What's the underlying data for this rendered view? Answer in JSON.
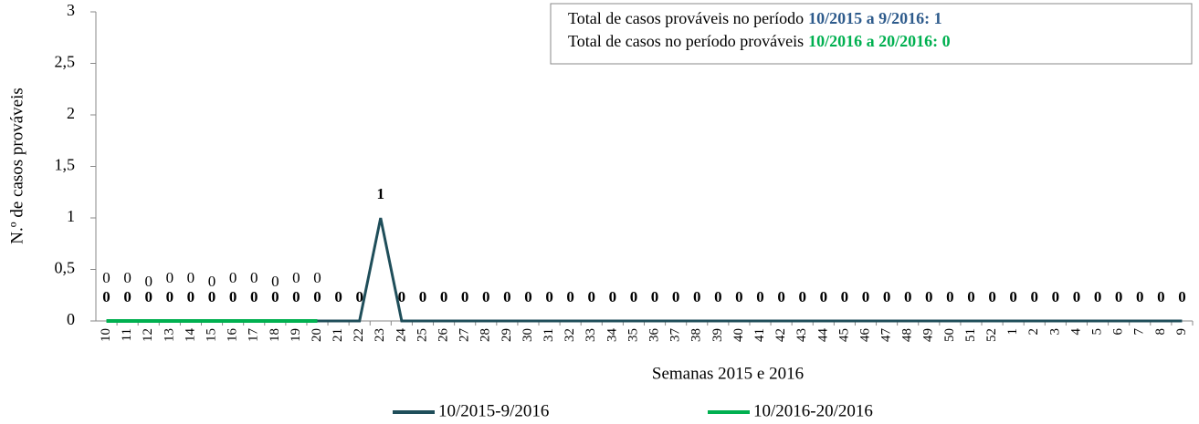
{
  "chart_data": {
    "type": "line",
    "y_label": "N.º de casos prováveis",
    "x_label": "Semanas 2015 e 2016",
    "categories": [
      "10",
      "11",
      "12",
      "13",
      "14",
      "15",
      "16",
      "17",
      "18",
      "19",
      "20",
      "21",
      "22",
      "23",
      "24",
      "25",
      "26",
      "27",
      "28",
      "29",
      "30",
      "31",
      "32",
      "33",
      "34",
      "35",
      "36",
      "37",
      "38",
      "39",
      "40",
      "41",
      "42",
      "43",
      "44",
      "45",
      "46",
      "47",
      "48",
      "49",
      "50",
      "51",
      "52",
      "1",
      "2",
      "3",
      "4",
      "5",
      "6",
      "7",
      "8",
      "9"
    ],
    "series": [
      {
        "name": "10/2015-9/2016",
        "color": "#1f4e5a",
        "label_color": "#31849b",
        "values": [
          0,
          0,
          0,
          0,
          0,
          0,
          0,
          0,
          0,
          0,
          0,
          0,
          0,
          1,
          0,
          0,
          0,
          0,
          0,
          0,
          0,
          0,
          0,
          0,
          0,
          0,
          0,
          0,
          0,
          0,
          0,
          0,
          0,
          0,
          0,
          0,
          0,
          0,
          0,
          0,
          0,
          0,
          0,
          0,
          0,
          0,
          0,
          0,
          0,
          0,
          0,
          0
        ]
      },
      {
        "name": "10/2016-20/2016",
        "color": "#00b050",
        "label_color": "#00b050",
        "values": [
          0,
          0,
          0,
          0,
          0,
          0,
          0,
          0,
          0,
          0,
          0,
          null,
          null,
          null,
          null,
          null,
          null,
          null,
          null,
          null,
          null,
          null,
          null,
          null,
          null,
          null,
          null,
          null,
          null,
          null,
          null,
          null,
          null,
          null,
          null,
          null,
          null,
          null,
          null,
          null,
          null,
          null,
          null,
          null,
          null,
          null,
          null,
          null,
          null,
          null,
          null,
          null
        ]
      }
    ],
    "ylim": [
      0,
      3
    ],
    "yticks": [
      0,
      {
        "value": 0.5,
        "label": "0,5"
      },
      1,
      {
        "value": 1.5,
        "label": "1,5"
      },
      2,
      {
        "value": 2.5,
        "label": "2,5"
      },
      3
    ],
    "annotations": [
      {
        "text": "Total de casos prováveis no período",
        "highlight": "10/2015 a 9/2016: 1",
        "color": "#2e5b8c"
      },
      {
        "text": "Total de casos no período prováveis",
        "highlight": "10/2016 a 20/2016: 0",
        "color": "#00b050"
      }
    ]
  }
}
